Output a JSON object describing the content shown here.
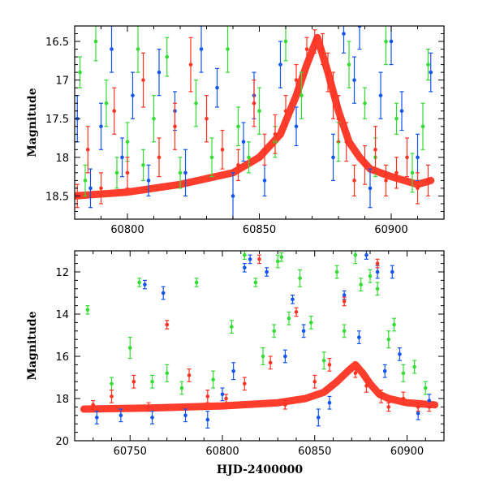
{
  "colors": {
    "green": "#33dd33",
    "blue": "#1155ee",
    "red": "#ff3322"
  },
  "chart_data": [
    {
      "type": "scatter",
      "title": "",
      "xlabel": "",
      "ylabel": "Magnitude",
      "xlim": [
        60780,
        60920
      ],
      "ylim": [
        18.8,
        16.3
      ],
      "y_inverted": true,
      "grid": false,
      "x_ticks": [
        60800,
        60850,
        60900
      ],
      "y_ticks": [
        16.5,
        17,
        17.5,
        18,
        18.5
      ],
      "x_tick_labels": [
        "60800",
        "60850",
        "60900"
      ],
      "y_tick_labels": [
        "16.5",
        "17",
        "17.5",
        "18",
        "18.5"
      ],
      "series": [
        {
          "color": "green",
          "x": [
            60782,
            60784,
            60788,
            60792,
            60796,
            60800,
            60804,
            60806,
            60810,
            60815,
            60820,
            60826,
            60832,
            60838,
            60842,
            60846,
            60850,
            60856,
            60860,
            60866,
            60880,
            60884,
            60890,
            60894,
            60898,
            60902,
            60908,
            60912,
            60914
          ],
          "y": [
            16.9,
            18.3,
            16.5,
            17.3,
            18.2,
            17.8,
            16.6,
            18.1,
            17.5,
            16.7,
            18.2,
            17.3,
            18.0,
            16.6,
            17.6,
            18.0,
            17.4,
            17.8,
            16.5,
            17.2,
            17.8,
            16.8,
            17.3,
            18.0,
            16.5,
            17.5,
            18.2,
            17.6,
            16.8
          ],
          "yerr": [
            0.2,
            0.2,
            0.25,
            0.3,
            0.2,
            0.25,
            0.3,
            0.2,
            0.3,
            0.25,
            0.2,
            0.3,
            0.25,
            0.3,
            0.25,
            0.2,
            0.3,
            0.2,
            0.25,
            0.3,
            0.25,
            0.3,
            0.2,
            0.25,
            0.3,
            0.2,
            0.25,
            0.3,
            0.2
          ]
        },
        {
          "color": "blue",
          "x": [
            60781,
            60786,
            60790,
            60794,
            60798,
            60802,
            60808,
            60812,
            60818,
            60822,
            60828,
            60834,
            60840,
            60844,
            60848,
            60852,
            60858,
            60864,
            60878,
            60882,
            60886,
            60888,
            60892,
            60896,
            60900,
            60904,
            60910,
            60915
          ],
          "y": [
            17.5,
            18.4,
            17.6,
            16.6,
            18.0,
            17.2,
            18.3,
            16.9,
            17.4,
            18.2,
            16.6,
            17.1,
            18.5,
            17.8,
            17.2,
            18.3,
            16.8,
            17.6,
            18.0,
            16.4,
            17.0,
            16.3,
            18.4,
            17.2,
            16.5,
            17.4,
            18.0,
            16.9
          ],
          "yerr": [
            0.3,
            0.25,
            0.3,
            0.3,
            0.25,
            0.3,
            0.2,
            0.3,
            0.25,
            0.3,
            0.3,
            0.25,
            0.3,
            0.25,
            0.3,
            0.2,
            0.3,
            0.25,
            0.3,
            0.25,
            0.3,
            0.3,
            0.25,
            0.3,
            0.3,
            0.25,
            0.3,
            0.25
          ]
        },
        {
          "color": "red",
          "x": [
            60781,
            60785,
            60790,
            60795,
            60800,
            60806,
            60812,
            60818,
            60824,
            60830,
            60836,
            60842,
            60848,
            60852,
            60856,
            60860,
            60864,
            60868,
            60871,
            60874,
            60876,
            60878,
            60880,
            60883,
            60886,
            60890,
            60894,
            60898,
            60902,
            60906,
            60910,
            60914
          ],
          "y": [
            18.5,
            17.9,
            18.4,
            17.4,
            18.2,
            17.0,
            18.0,
            17.6,
            16.8,
            17.5,
            17.9,
            18.1,
            17.3,
            17.9,
            17.7,
            17.4,
            17.0,
            16.6,
            16.5,
            16.6,
            16.9,
            17.2,
            17.5,
            17.8,
            18.3,
            18.1,
            17.9,
            18.3,
            18.2,
            18.0,
            18.4,
            18.3
          ],
          "yerr": [
            0.15,
            0.3,
            0.2,
            0.3,
            0.2,
            0.35,
            0.25,
            0.3,
            0.35,
            0.3,
            0.25,
            0.2,
            0.3,
            0.2,
            0.25,
            0.2,
            0.2,
            0.15,
            0.15,
            0.2,
            0.25,
            0.3,
            0.3,
            0.25,
            0.2,
            0.25,
            0.3,
            0.2,
            0.2,
            0.25,
            0.2,
            0.2
          ]
        }
      ],
      "trend": {
        "color": "red",
        "x": [
          60780,
          60800,
          60820,
          60840,
          60850,
          60858,
          60864,
          60868,
          60872,
          60876,
          60880,
          60884,
          60888,
          60892,
          60900,
          60910,
          60915
        ],
        "y": [
          18.5,
          18.45,
          18.35,
          18.2,
          18.0,
          17.7,
          17.2,
          16.8,
          16.45,
          16.9,
          17.4,
          17.8,
          18.0,
          18.15,
          18.25,
          18.35,
          18.3
        ]
      }
    },
    {
      "type": "scatter",
      "title": "",
      "xlabel": "HJD-2400000",
      "ylabel": "Magnitude",
      "xlim": [
        60720,
        60920
      ],
      "ylim": [
        20,
        11
      ],
      "y_inverted": true,
      "grid": false,
      "x_ticks": [
        60750,
        60800,
        60850,
        60900
      ],
      "y_ticks": [
        12,
        14,
        16,
        18,
        20
      ],
      "x_tick_labels": [
        "60750",
        "60800",
        "60850",
        "60900"
      ],
      "y_tick_labels": [
        "12",
        "14",
        "16",
        "18",
        "20"
      ],
      "series": [
        {
          "color": "green",
          "x": [
            60727,
            60740,
            60750,
            60755,
            60762,
            60770,
            60778,
            60786,
            60795,
            60805,
            60812,
            60818,
            60822,
            60828,
            60830,
            60832,
            60836,
            60842,
            60848,
            60855,
            60862,
            60866,
            60872,
            60875,
            60880,
            60884,
            60890,
            60893,
            60898,
            60904,
            60910
          ],
          "y": [
            13.8,
            17.3,
            15.6,
            12.5,
            17.2,
            16.8,
            17.5,
            12.5,
            17.1,
            14.6,
            11.2,
            12.5,
            16.0,
            14.8,
            11.5,
            11.3,
            14.2,
            12.3,
            14.4,
            16.2,
            12.0,
            14.8,
            11.2,
            12.6,
            12.2,
            12.8,
            15.2,
            14.5,
            16.8,
            16.5,
            17.5
          ],
          "yerr": [
            0.2,
            0.3,
            0.5,
            0.2,
            0.3,
            0.4,
            0.3,
            0.2,
            0.4,
            0.3,
            0.2,
            0.2,
            0.4,
            0.3,
            0.3,
            0.2,
            0.3,
            0.4,
            0.3,
            0.4,
            0.3,
            0.3,
            0.4,
            0.3,
            0.3,
            0.3,
            0.4,
            0.3,
            0.4,
            0.3,
            0.3
          ]
        },
        {
          "color": "blue",
          "x": [
            60732,
            60745,
            60758,
            60762,
            60768,
            60780,
            60792,
            60800,
            60806,
            60812,
            60815,
            60824,
            60834,
            60838,
            60844,
            60852,
            60858,
            60866,
            60874,
            60878,
            60884,
            60888,
            60892,
            60896,
            60906,
            60912
          ],
          "y": [
            18.9,
            18.8,
            12.6,
            18.9,
            13.0,
            18.8,
            19.0,
            17.8,
            16.7,
            11.8,
            11.4,
            12.0,
            16.0,
            13.3,
            14.8,
            18.9,
            18.2,
            13.1,
            15.1,
            11.2,
            12.0,
            16.7,
            12.0,
            15.9,
            18.7,
            18.1
          ],
          "yerr": [
            0.3,
            0.3,
            0.2,
            0.3,
            0.3,
            0.3,
            0.4,
            0.3,
            0.4,
            0.2,
            0.2,
            0.2,
            0.3,
            0.2,
            0.3,
            0.4,
            0.3,
            0.2,
            0.3,
            0.2,
            0.3,
            0.3,
            0.3,
            0.3,
            0.3,
            0.3
          ]
        },
        {
          "color": "red",
          "x": [
            60730,
            60740,
            60752,
            60760,
            60770,
            60782,
            60792,
            60802,
            60812,
            60820,
            60826,
            60834,
            60840,
            60850,
            60858,
            60866,
            60872,
            60878,
            60884,
            60886,
            60890,
            60898,
            60906,
            60912
          ],
          "y": [
            18.3,
            17.9,
            17.2,
            18.4,
            14.5,
            16.9,
            17.9,
            18.0,
            17.3,
            11.4,
            16.3,
            18.3,
            13.9,
            17.2,
            16.4,
            13.4,
            16.8,
            17.4,
            11.6,
            17.9,
            18.4,
            18.0,
            18.4,
            18.4
          ],
          "yerr": [
            0.2,
            0.3,
            0.3,
            0.2,
            0.2,
            0.3,
            0.3,
            0.2,
            0.3,
            0.2,
            0.3,
            0.2,
            0.2,
            0.3,
            0.3,
            0.2,
            0.2,
            0.3,
            0.2,
            0.3,
            0.2,
            0.3,
            0.2,
            0.2
          ]
        }
      ],
      "trend": {
        "color": "red",
        "x": [
          60725,
          60760,
          60800,
          60830,
          60845,
          60855,
          60862,
          60868,
          60872,
          60876,
          60880,
          60885,
          60890,
          60900,
          60915
        ],
        "y": [
          18.5,
          18.45,
          18.35,
          18.2,
          18.0,
          17.7,
          17.2,
          16.7,
          16.4,
          16.8,
          17.3,
          17.8,
          18.0,
          18.2,
          18.3
        ]
      }
    }
  ]
}
